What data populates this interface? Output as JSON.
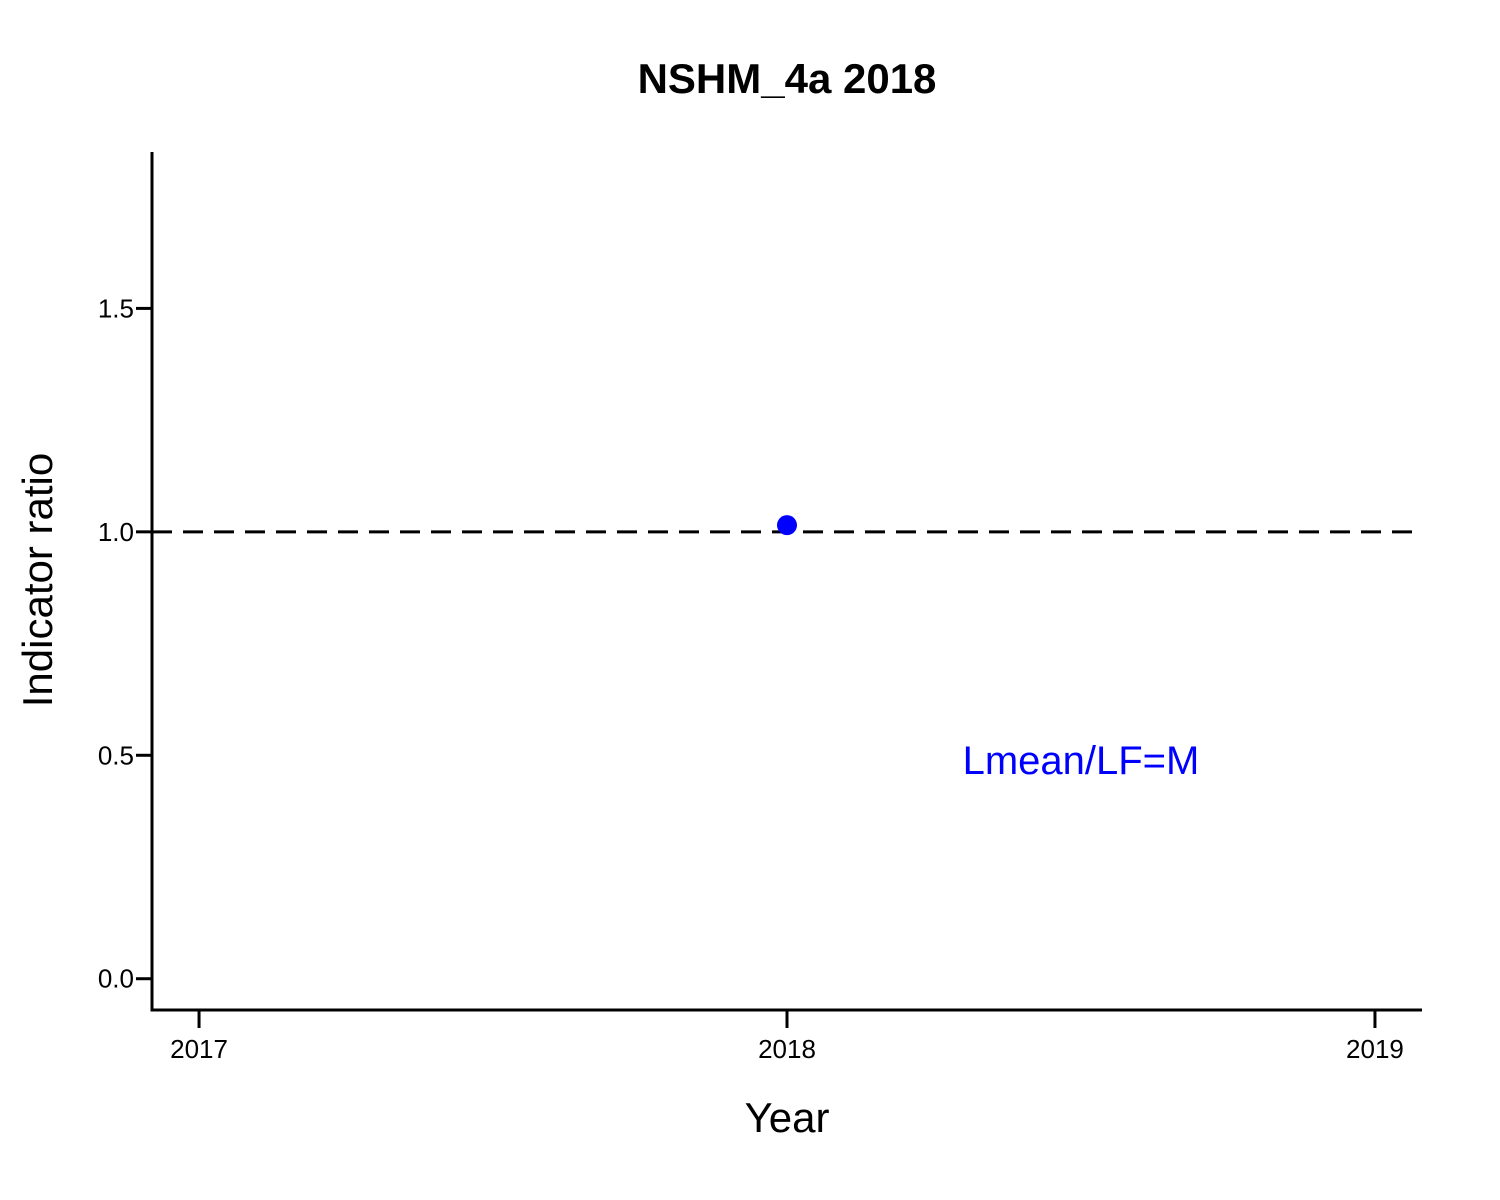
{
  "chart_data": {
    "type": "scatter",
    "title": "NSHM_4a 2018",
    "xlabel": "Year",
    "ylabel": "Indicator ratio",
    "xlim": [
      2016.92,
      2019.08
    ],
    "ylim": [
      -0.07,
      1.85
    ],
    "x_ticks": [
      2017,
      2018,
      2019
    ],
    "y_ticks": [
      0.0,
      0.5,
      1.0,
      1.5
    ],
    "x_tick_labels": [
      "2017",
      "2018",
      "2019"
    ],
    "y_tick_labels": [
      "0.0",
      "0.5",
      "1.0",
      "1.5"
    ],
    "series": [
      {
        "points": [
          {
            "x": 2018,
            "y": 1.015
          }
        ],
        "color": "#0000ff"
      }
    ],
    "reference_line": {
      "y": 1.0,
      "style": "dashed",
      "color": "#000000"
    },
    "annotation": {
      "text": "Lmean/LF=M",
      "x": 2018.5,
      "y": 0.49,
      "color": "#0000ff"
    },
    "grid": false
  }
}
